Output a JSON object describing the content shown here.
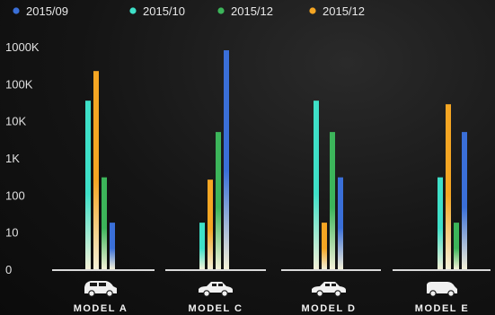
{
  "chart_data": {
    "type": "bar",
    "scale": "log",
    "categories": [
      "MODEL A",
      "MODEL C",
      "MODEL D",
      "MODEL E"
    ],
    "category_icons": [
      "suv-car-icon",
      "sedan-car-icon",
      "hatchback-car-icon",
      "van-icon"
    ],
    "y_ticks": [
      "0",
      "10",
      "100",
      "1K",
      "10K",
      "100K",
      "1000K"
    ],
    "series": [
      {
        "name": "2015/09",
        "color": "#3a6fd8",
        "values": [
          18,
          800000,
          300,
          5000
        ]
      },
      {
        "name": "2015/10",
        "color": "#3ee0c8",
        "values": [
          35000,
          18,
          35000,
          300
        ]
      },
      {
        "name": "2015/12",
        "color": "#3cb55a",
        "values": [
          300,
          5000,
          5000,
          18
        ]
      },
      {
        "name": "2015/12",
        "color": "#f5a623",
        "values": [
          220000,
          260,
          18,
          28000
        ]
      }
    ],
    "ylim": [
      1,
      1000000
    ],
    "grid": false,
    "legend_position": "top"
  }
}
